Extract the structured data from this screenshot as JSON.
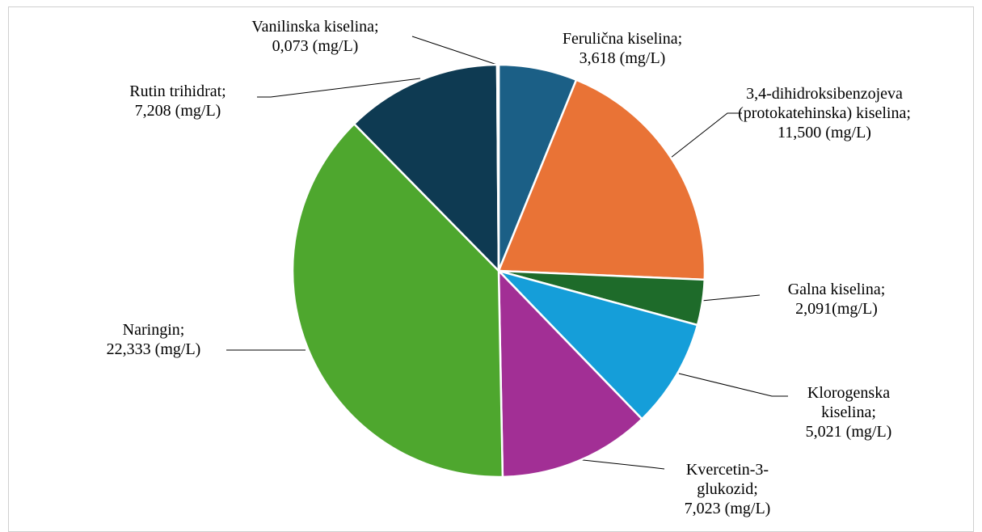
{
  "chart_data": {
    "type": "pie",
    "categories": [
      "Ferulična kiselina;",
      "3,4-dihidroksibenzojeva (protokatehinska) kiselina;",
      "Galna kiselina;",
      "Klorogenska kiselina;",
      "Kvercetin-3-glukozid;",
      "Naringin;",
      "Rutin trihidrat;",
      "Vanilinska kiselina;"
    ],
    "values": [
      3.618,
      11.5,
      2.091,
      5.021,
      7.023,
      22.333,
      7.208,
      0.073
    ],
    "value_labels": [
      "3,618 (mg/L)",
      "11,500 (mg/L)",
      "2,091(mg/L)",
      "5,021 (mg/L)",
      "7,023 (mg/L)",
      "22,333 (mg/L)",
      "7,208 (mg/L)",
      "0,073 (mg/L)"
    ],
    "colors": [
      "#1b5f86",
      "#e97336",
      "#1e6b2a",
      "#159ed9",
      "#a22f95",
      "#4ea72e",
      "#0e3a52",
      "#1b5f86"
    ]
  }
}
